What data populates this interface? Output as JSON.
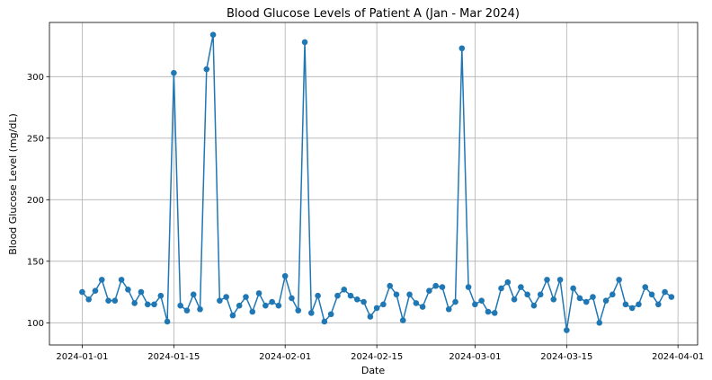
{
  "chart_data": {
    "type": "line",
    "title": "Blood Glucose Levels of Patient A (Jan - Mar 2024)",
    "xlabel": "Date",
    "ylabel": "Blood Glucose Level (mg/dL)",
    "x_start": "2024-01-01",
    "xlim": [
      "2023-12-27",
      "2024-04-04"
    ],
    "ylim": [
      82,
      344
    ],
    "x_ticks": [
      "2024-01-01",
      "2024-01-15",
      "2024-02-01",
      "2024-02-15",
      "2024-03-01",
      "2024-03-15",
      "2024-04-01"
    ],
    "y_ticks": [
      100,
      150,
      200,
      250,
      300
    ],
    "grid": true,
    "series": [
      {
        "color": "#1f77b4",
        "marker": "circle",
        "values": [
          125,
          119,
          126,
          135,
          118,
          118,
          135,
          127,
          116,
          125,
          115,
          115,
          122,
          101,
          303,
          114,
          110,
          123,
          111,
          306,
          334,
          118,
          121,
          106,
          114,
          121,
          109,
          124,
          114,
          117,
          114,
          138,
          120,
          110,
          328,
          108,
          122,
          101,
          107,
          122,
          127,
          122,
          119,
          117,
          105,
          112,
          115,
          130,
          123,
          102,
          123,
          116,
          113,
          126,
          130,
          129,
          111,
          117,
          323,
          129,
          115,
          118,
          109,
          108,
          128,
          133,
          119,
          129,
          123,
          114,
          123,
          135,
          119,
          135,
          94,
          128,
          120,
          117,
          121,
          100,
          118,
          123,
          135,
          115,
          112,
          115,
          129,
          123,
          115,
          125,
          121
        ]
      }
    ]
  }
}
